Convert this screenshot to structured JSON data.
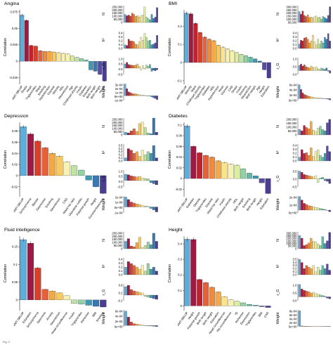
{
  "caption_fragment": "Fig. 2",
  "palette": [
    "#5aaee0",
    "#9b1b45",
    "#c0232f",
    "#d8402a",
    "#e8603a",
    "#f08a3e",
    "#f5a944",
    "#f9ca5e",
    "#fbe48c",
    "#f7f2b0",
    "#dcefa0",
    "#bfe3a0",
    "#93d2a2",
    "#63bba6",
    "#3f99b2",
    "#3a78b3",
    "#5a4f9e",
    "#4a3f8f"
  ],
  "chart_data": [
    {
      "type": "bar",
      "title": "Angina",
      "ylabel": "Correlation",
      "categories": [
        "eMT-SBLUP",
        "Stroke",
        "Heart",
        "Triglycerides",
        "Waist",
        "Smoking",
        "Hypertension",
        "Glucose",
        "Obesity",
        "HDL",
        "Neuroticism",
        "Age",
        "Childhood obesity",
        "Insulin",
        "Diabetes",
        "Education",
        "Birth length",
        "Birth weight",
        "Height"
      ],
      "values": [
        0.07,
        0.062,
        0.024,
        0.023,
        0.016,
        0.015,
        0.015,
        0.014,
        0.013,
        0.012,
        0.011,
        0.008,
        0.006,
        0.004,
        0.002,
        -0.013,
        -0.015,
        -0.02,
        -0.03
      ],
      "yticks": [
        0.075,
        0.05,
        0.025,
        0,
        -0.025
      ],
      "ylim": [
        -0.035,
        0.078
      ],
      "side": {
        "N": {
          "ticks": [
            "250,000",
            "200,000",
            "150,000",
            "100,000",
            "50,000",
            "0"
          ],
          "max": 250000,
          "values": [
            120000,
            100000,
            110000,
            95000,
            140000,
            120000,
            90000,
            100000,
            80000,
            100000,
            110000,
            230000,
            80000,
            60000,
            40000,
            120000,
            60000,
            80000,
            220000
          ]
        },
        "h2": {
          "ticks": [
            "0.4",
            "0.3",
            "0.2",
            "0.1",
            "0.0"
          ],
          "max": 0.45,
          "values": [
            0.1,
            0.08,
            0.25,
            0.2,
            0.2,
            0.18,
            0.12,
            0.1,
            0.18,
            0.3,
            0.22,
            0.4,
            0.3,
            0.2,
            0.22,
            0.1,
            0.12,
            0.15,
            0.35
          ]
        },
        "rG": {
          "ticks": [
            "1.0",
            "0.5",
            "0.0",
            "-0.5"
          ],
          "min": -0.6,
          "max": 1.0,
          "values": [
            0.4,
            0.55,
            0.35,
            0.3,
            0.28,
            0.25,
            0.3,
            0.4,
            0.2,
            -0.2,
            0.25,
            -0.1,
            0.3,
            0.2,
            0.35,
            -0.3,
            -0.2,
            -0.25,
            -0.15
          ]
        },
        "weight": {
          "ticks": [
            "3e-04",
            "2e-04",
            "1e-04",
            "0e+00",
            "-1e-04"
          ],
          "min": -0.00012,
          "max": 0.00031,
          "values": [
            0.0003,
            0.00018,
            0.0001,
            8e-05,
            6e-05,
            5e-05,
            5e-05,
            4e-05,
            3e-05,
            2e-05,
            2e-05,
            1e-05,
            5e-06,
            0.0,
            -1e-05,
            -3e-05,
            -5e-05,
            -7e-05,
            -0.0001
          ]
        }
      }
    },
    {
      "type": "bar",
      "title": "BMI",
      "ylabel": "Correlation",
      "categories": [
        "eMT-SBLUP",
        "Obesity",
        "Waist",
        "Childhood obesity",
        "Triglycerides",
        "Diabetes",
        "HDL",
        "Hypertension",
        "Heart",
        "Glucose",
        "CAD",
        "Stroke",
        "Insulin",
        "Smoking",
        "Neuroticism",
        "Birth weight",
        "Age",
        "Height",
        "Education"
      ],
      "values": [
        0.272,
        0.268,
        0.215,
        0.165,
        0.14,
        0.128,
        0.12,
        0.095,
        0.085,
        0.075,
        0.065,
        0.055,
        0.045,
        0.038,
        0.03,
        0.02,
        0.008,
        -0.04,
        -0.085
      ],
      "yticks": [
        0.2,
        0.1,
        0.0,
        -0.1
      ],
      "ylim": [
        -0.12,
        0.29
      ],
      "side": {
        "N": {
          "ticks": [
            "300,000",
            "250,000",
            "200,000",
            "150,000",
            "100,000",
            "50,000"
          ],
          "max": 310000,
          "values": [
            200000,
            150000,
            210000,
            130000,
            110000,
            140000,
            90000,
            100000,
            80000,
            110000,
            120000,
            90000,
            100000,
            60000,
            110000,
            90000,
            70000,
            130000,
            290000
          ]
        },
        "h2": {
          "ticks": [
            "0.4",
            "0.3",
            "0.2",
            "0.1",
            "0.0"
          ],
          "max": 0.45,
          "values": [
            0.12,
            0.22,
            0.2,
            0.28,
            0.3,
            0.25,
            0.15,
            0.2,
            0.35,
            0.18,
            0.1,
            0.25,
            0.12,
            0.2,
            0.15,
            0.3,
            0.25,
            0.4,
            0.2
          ]
        },
        "rG": {
          "ticks": [
            "1.0",
            "0.5",
            "0.0"
          ],
          "min": -0.3,
          "max": 1.0,
          "values": [
            0.4,
            0.5,
            0.35,
            0.45,
            0.3,
            0.25,
            0.2,
            0.35,
            0.25,
            0.2,
            0.3,
            0.15,
            0.1,
            0.2,
            0.15,
            0.1,
            0.2,
            -0.05,
            -0.2
          ]
        },
        "weight": {
          "ticks": [
            "6e-04",
            "4e-04",
            "2e-04",
            "0e+00"
          ],
          "min": -8e-05,
          "max": 0.00065,
          "values": [
            0.0006,
            0.0004,
            0.00025,
            0.00018,
            0.00015,
            0.00012,
            0.0001,
            8e-05,
            6e-05,
            5e-05,
            4e-05,
            3e-05,
            3e-05,
            2e-05,
            1e-05,
            1e-05,
            0.0,
            -3e-05,
            -6e-05
          ]
        }
      }
    },
    {
      "type": "bar",
      "title": "Depression",
      "ylabel": "Correlation",
      "categories": [
        "eMT-SBLUP",
        "Schizophrenia",
        "Bipolar",
        "Depressive",
        "Smoking",
        "Neuroticism",
        "CAD",
        "Waist-hip ratio",
        "Ulcerative colitis",
        "Pubertal growth",
        "Height",
        "Conscientiousness"
      ],
      "values": [
        0.088,
        0.075,
        0.062,
        0.05,
        0.04,
        0.035,
        0.025,
        0.018,
        0.01,
        -0.008,
        -0.02,
        -0.032
      ],
      "yticks": [
        0.08,
        0.06,
        0.04,
        0.02,
        0.0,
        -0.02
      ],
      "ylim": [
        -0.038,
        0.096
      ],
      "side": {
        "N": {
          "ticks": [
            "250,000",
            "200,000",
            "150,000",
            "100,000",
            "50,000",
            "0"
          ],
          "max": 250000,
          "values": [
            40000,
            30000,
            60000,
            90000,
            50000,
            170000,
            190000,
            110000,
            30000,
            20000,
            250000,
            40000
          ]
        },
        "h2": {
          "ticks": [
            "0.5",
            "0.4",
            "0.3",
            "0.2",
            "0.1",
            "0.0"
          ],
          "max": 0.55,
          "values": [
            0.1,
            0.4,
            0.35,
            0.25,
            0.3,
            0.15,
            0.35,
            0.2,
            0.3,
            0.25,
            0.5,
            0.1
          ]
        },
        "rG": {
          "ticks": [
            "1.0",
            "0.5",
            "0.0",
            "-0.5"
          ],
          "min": -0.6,
          "max": 1.0,
          "values": [
            0.6,
            0.55,
            0.45,
            0.4,
            0.35,
            0.4,
            0.25,
            0.2,
            0.15,
            -0.2,
            -0.3,
            -0.4
          ]
        },
        "weight": {
          "ticks": [
            "2e-04",
            "1e-04",
            "0e+00",
            "-1e-04"
          ],
          "min": -0.00012,
          "max": 0.00022,
          "values": [
            0.0002,
            0.00015,
            0.0001,
            8e-05,
            6e-05,
            5e-05,
            3e-05,
            2e-05,
            1e-05,
            -3e-05,
            -6e-05,
            -0.0001
          ]
        }
      }
    },
    {
      "type": "bar",
      "title": "Diabetes",
      "ylabel": "Correlation",
      "categories": [
        "eMT-SBLUP",
        "Diabetes",
        "Obesity",
        "Triglycerides",
        "Glucose",
        "Waist-hip ratio",
        "Insulin",
        "Childhood obesity",
        "HDL",
        "Birth weight",
        "Smoking",
        "Birth length",
        "Height",
        "Education"
      ],
      "values": [
        0.098,
        0.06,
        0.048,
        0.043,
        0.04,
        0.033,
        0.03,
        0.027,
        0.025,
        0.018,
        0.01,
        0.005,
        -0.008,
        -0.028
      ],
      "yticks": [
        0.1,
        0.08,
        0.06,
        0.04,
        0.02,
        0.0,
        -0.02
      ],
      "ylim": [
        -0.034,
        0.105
      ],
      "side": {
        "N": {
          "ticks": [
            "200,000",
            "150,000",
            "100,000",
            "50,000",
            "0"
          ],
          "max": 250000,
          "values": [
            80000,
            60000,
            140000,
            110000,
            90000,
            200000,
            70000,
            50000,
            100000,
            130000,
            80000,
            60000,
            180000,
            230000
          ]
        },
        "h2": {
          "ticks": [
            "0.4",
            "0.3",
            "0.2",
            "0.1",
            "0.0"
          ],
          "max": 0.45,
          "values": [
            0.1,
            0.3,
            0.2,
            0.22,
            0.15,
            0.35,
            0.12,
            0.25,
            0.3,
            0.15,
            0.1,
            0.2,
            0.4,
            0.25
          ]
        },
        "rG": {
          "ticks": [
            "0.5",
            "0.0",
            "-0.5"
          ],
          "min": -0.7,
          "max": 0.8,
          "values": [
            0.7,
            0.6,
            0.4,
            0.35,
            0.3,
            0.25,
            0.2,
            0.3,
            -0.3,
            0.1,
            0.15,
            -0.15,
            -0.2,
            -0.4
          ]
        },
        "weight": {
          "ticks": [
            "2e-04",
            "1e-04",
            "0e+00"
          ],
          "min": -5e-05,
          "max": 0.00025,
          "values": [
            0.00024,
            0.00018,
            0.00012,
            0.0001,
            8e-05,
            7e-05,
            6e-05,
            5e-05,
            4e-05,
            3e-05,
            2e-05,
            1e-05,
            0.0,
            -3e-05
          ]
        }
      }
    },
    {
      "type": "bar",
      "title": "Fluid intelligence",
      "ylabel": "Correlation",
      "categories": [
        "eMT-SBLUP",
        "Education",
        "Schizophrenia",
        "Openness",
        "Anxiety",
        "Neuroticism",
        "Head circumference",
        "Insulin",
        "Triglycerides",
        "Alzheimer",
        "BMI",
        "Smoking"
      ],
      "values": [
        0.17,
        0.16,
        0.09,
        0.03,
        0.025,
        0.02,
        0.012,
        -0.01,
        -0.012,
        -0.015,
        -0.018,
        -0.02
      ],
      "yticks": [
        0.15,
        0.1,
        0.05,
        0.0
      ],
      "ylim": [
        -0.03,
        0.18
      ],
      "side": {
        "N": {
          "ticks": [
            "250,000",
            "200,000",
            "150,000",
            "100,000",
            "50,000",
            "0"
          ],
          "max": 250000,
          "values": [
            110000,
            150000,
            40000,
            30000,
            90000,
            170000,
            20000,
            50000,
            100000,
            60000,
            230000,
            110000
          ]
        },
        "h2": {
          "ticks": [
            "0.4",
            "0.3",
            "0.2",
            "0.1",
            "0.0"
          ],
          "max": 0.45,
          "values": [
            0.2,
            0.35,
            0.3,
            0.25,
            0.2,
            0.15,
            0.25,
            0.1,
            0.3,
            0.15,
            0.2,
            0.1
          ]
        },
        "rG": {
          "ticks": [
            "0.6",
            "0.2",
            "-0.2"
          ],
          "min": -0.4,
          "max": 0.8,
          "values": [
            0.6,
            0.7,
            0.4,
            0.3,
            0.25,
            0.2,
            0.15,
            -0.1,
            -0.15,
            -0.2,
            -0.25,
            -0.3
          ]
        },
        "weight": {
          "ticks": [
            "6e-04",
            "4e-04",
            "2e-04",
            "0e+00"
          ],
          "min": -5e-05,
          "max": 0.00065,
          "values": [
            0.0006,
            0.00035,
            0.00015,
            8e-05,
            6e-05,
            4e-05,
            3e-05,
            -1e-05,
            -2e-05,
            -2e-05,
            -3e-05,
            -4e-05
          ]
        }
      }
    },
    {
      "type": "bar",
      "title": "Height",
      "ylabel": "Correlation",
      "categories": [
        "eMT-SBLUP",
        "Height",
        "Pubertal growth",
        "Birth length",
        "Birth weight",
        "Education",
        "Head circumference",
        "Hip circumference",
        "IQ",
        "Alzheimer",
        "Depression",
        "Triglycerides",
        "BMI",
        "CAD"
      ],
      "values": [
        0.43,
        0.428,
        0.17,
        0.15,
        0.12,
        0.09,
        0.06,
        0.04,
        0.03,
        0.02,
        0.01,
        0.005,
        -0.005,
        -0.01
      ],
      "yticks": [
        0.4,
        0.3,
        0.2,
        0.1,
        0.0
      ],
      "ylim": [
        -0.03,
        0.45
      ],
      "side": {
        "N": {
          "ticks": [
            "300,000",
            "250,000",
            "200,000",
            "150,000",
            "100,000",
            "50,000",
            "0"
          ],
          "max": 320000,
          "values": [
            250000,
            200000,
            60000,
            80000,
            110000,
            200000,
            140000,
            130000,
            90000,
            60000,
            230000,
            100000,
            150000,
            310000
          ]
        },
        "h2": {
          "ticks": [
            "0.5",
            "0.4",
            "0.3",
            "0.2",
            "0.1",
            "0.0"
          ],
          "max": 0.55,
          "values": [
            0.5,
            0.4,
            0.2,
            0.3,
            0.25,
            0.2,
            0.3,
            0.1,
            0.25,
            0.15,
            0.3,
            0.2,
            0.35,
            0.15
          ]
        },
        "rG": {
          "ticks": [
            "1.0",
            "0.5",
            "0.0"
          ],
          "min": -0.3,
          "max": 1.0,
          "values": [
            0.95,
            0.6,
            0.5,
            0.45,
            0.4,
            0.3,
            0.35,
            0.25,
            0.2,
            0.15,
            0.1,
            0.05,
            -0.1,
            -0.15
          ]
        },
        "weight": {
          "ticks": [
            "8e-04",
            "6e-04",
            "4e-04",
            "2e-04",
            "0e+00"
          ],
          "min": -2e-05,
          "max": 0.00085,
          "values": [
            0.0008,
            2e-05,
            1e-05,
            1e-05,
            1e-05,
            0.0,
            0.0,
            0.0,
            0.0,
            0.0,
            0.0,
            0.0,
            0.0,
            0.0
          ]
        }
      }
    }
  ],
  "side_labels": {
    "N": "N",
    "h2": "h²",
    "rG": "r_G",
    "weight": "Weight"
  }
}
